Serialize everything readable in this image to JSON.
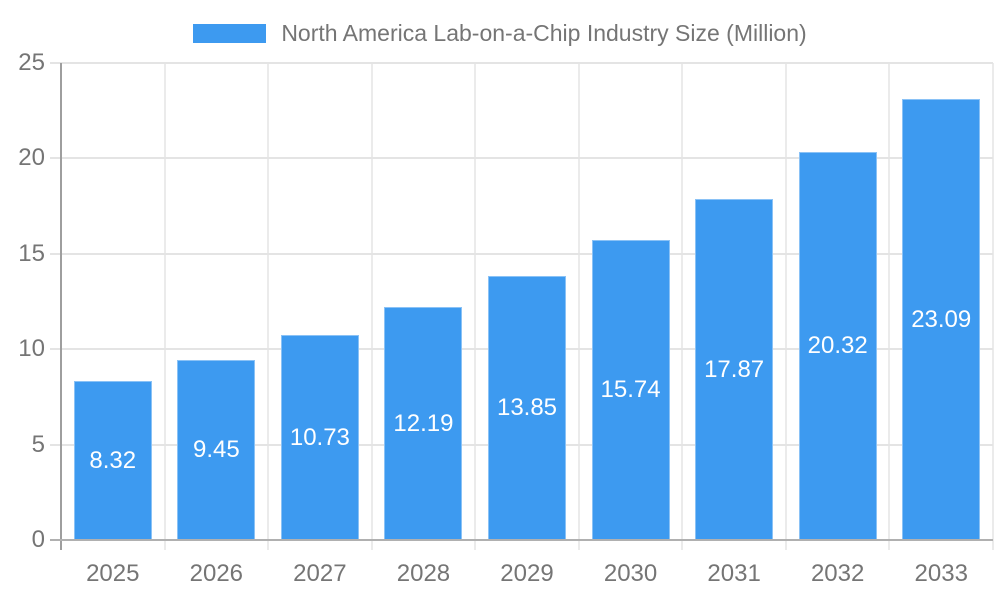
{
  "chart_data": {
    "type": "bar",
    "title": "North America Lab-on-a-Chip Industry Size (Million)",
    "legend": {
      "label": "North America Lab-on-a-Chip Industry Size (Million)",
      "position": "top"
    },
    "categories": [
      "2025",
      "2026",
      "2027",
      "2028",
      "2029",
      "2030",
      "2031",
      "2032",
      "2033"
    ],
    "series": [
      {
        "name": "North America Lab-on-a-Chip Industry Size (Million)",
        "values": [
          8.32,
          9.45,
          10.73,
          12.19,
          13.85,
          15.74,
          17.87,
          20.32,
          23.09
        ]
      }
    ],
    "value_labels": [
      "8.32",
      "9.45",
      "10.73",
      "12.19",
      "13.85",
      "15.74",
      "17.87",
      "20.32",
      "23.09"
    ],
    "xlabel": "",
    "ylabel": "",
    "ylim": [
      0,
      25
    ],
    "yticks": [
      0,
      5,
      10,
      15,
      20,
      25
    ],
    "ytick_labels": [
      "0",
      "5",
      "10",
      "15",
      "20",
      "25"
    ],
    "grid": true,
    "colors": {
      "bar": "#3d9af0",
      "text": "#757575",
      "value_label": "#ffffff",
      "axis_line": "#9e9e9e",
      "baseline": "#b0b0b0",
      "gridline": "#e4e4e4",
      "vertical_gridline": "#ebebeb",
      "background": "#ffffff"
    }
  }
}
